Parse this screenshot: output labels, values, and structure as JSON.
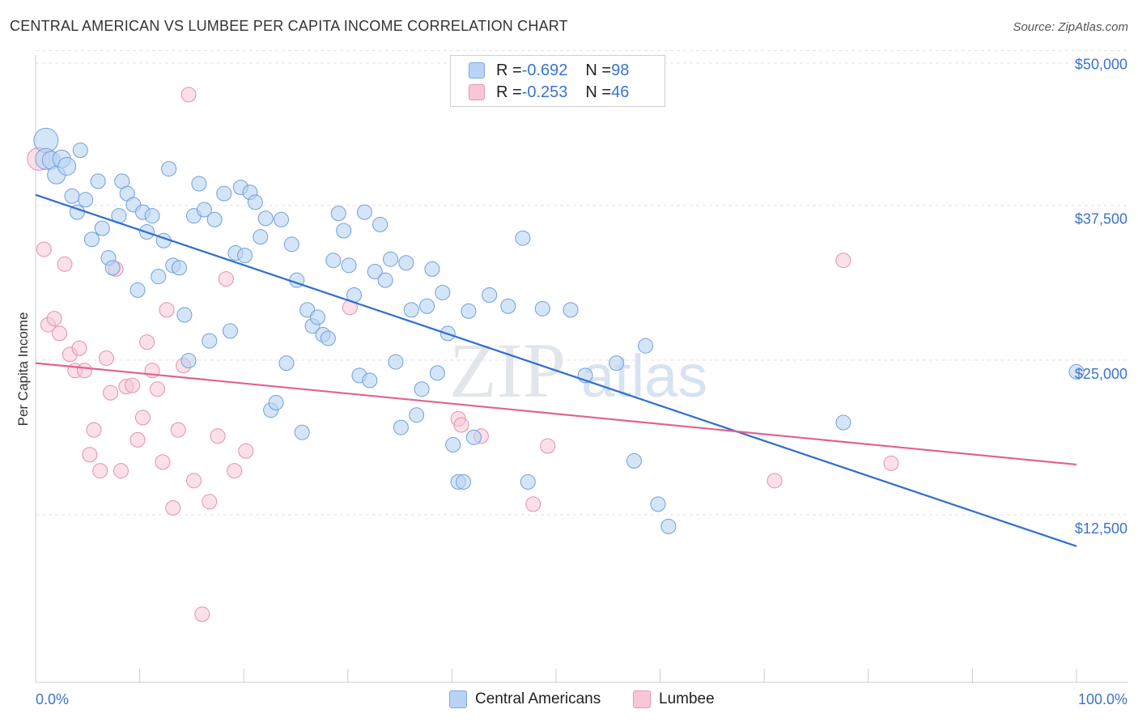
{
  "header": {
    "title": "CENTRAL AMERICAN VS LUMBEE PER CAPITA INCOME CORRELATION CHART",
    "source": "Source: ZipAtlas.com"
  },
  "watermark": {
    "zip": "ZIP",
    "atlas": "atlas"
  },
  "legend": {
    "rows": [
      {
        "r_label": "R = ",
        "r_value": "-0.692",
        "n_label": "N = ",
        "n_value": "98",
        "color": "#b9d3f4"
      },
      {
        "r_label": "R = ",
        "r_value": "-0.253",
        "n_label": "N = ",
        "n_value": "46",
        "color": "#f7c7d6"
      }
    ]
  },
  "bottom_legend": {
    "series1": "Central Americans",
    "series2": "Lumbee"
  },
  "chart_data": {
    "type": "scatter",
    "title": "CENTRAL AMERICAN VS LUMBEE PER CAPITA INCOME CORRELATION CHART",
    "xlabel": "",
    "ylabel": "Per Capita Income",
    "xlim": [
      0,
      100
    ],
    "ylim": [
      0,
      51000
    ],
    "x_tick_labels": [
      "0.0%",
      "100.0%"
    ],
    "y_ticks": [
      12500,
      25000,
      37500,
      50000
    ],
    "y_tick_labels": [
      "$12,500",
      "$25,000",
      "$37,500",
      "$50,000"
    ],
    "grid": true,
    "legend_position": "top-center",
    "colors": {
      "blue_fill": "#b9d3f4",
      "blue_line": "#2f6fd1",
      "pink_fill": "#f7c7d6",
      "pink_line": "#e0628f",
      "axis_text": "#3a74c9"
    },
    "series": [
      {
        "name": "Central Americans",
        "r": -0.692,
        "n": 98,
        "trend": [
          [
            0,
            39400
          ],
          [
            100,
            11000
          ]
        ],
        "points": [
          [
            1.0,
            43800
          ],
          [
            1.0,
            42300
          ],
          [
            1.5,
            42200
          ],
          [
            2.0,
            41000
          ],
          [
            2.5,
            42300
          ],
          [
            3.0,
            41700
          ],
          [
            3.5,
            39300
          ],
          [
            4.0,
            38000
          ],
          [
            4.3,
            43000
          ],
          [
            4.8,
            39000
          ],
          [
            5.4,
            35800
          ],
          [
            6.0,
            40500
          ],
          [
            6.4,
            36700
          ],
          [
            7.0,
            34300
          ],
          [
            7.4,
            33500
          ],
          [
            8.0,
            37700
          ],
          [
            8.3,
            40500
          ],
          [
            8.8,
            39500
          ],
          [
            9.4,
            38600
          ],
          [
            9.8,
            31700
          ],
          [
            10.3,
            38000
          ],
          [
            10.7,
            36400
          ],
          [
            11.2,
            37700
          ],
          [
            11.8,
            32800
          ],
          [
            12.3,
            35700
          ],
          [
            12.8,
            41500
          ],
          [
            13.2,
            33700
          ],
          [
            13.8,
            33500
          ],
          [
            14.3,
            29700
          ],
          [
            14.7,
            26000
          ],
          [
            15.2,
            37700
          ],
          [
            15.7,
            40300
          ],
          [
            16.2,
            38200
          ],
          [
            16.7,
            27600
          ],
          [
            17.2,
            37400
          ],
          [
            18.1,
            39500
          ],
          [
            18.7,
            28400
          ],
          [
            19.2,
            34700
          ],
          [
            19.7,
            40000
          ],
          [
            20.1,
            34500
          ],
          [
            20.6,
            39600
          ],
          [
            21.1,
            38800
          ],
          [
            21.6,
            36000
          ],
          [
            22.1,
            37500
          ],
          [
            22.6,
            22000
          ],
          [
            23.1,
            22600
          ],
          [
            23.6,
            37400
          ],
          [
            24.1,
            25800
          ],
          [
            24.6,
            35400
          ],
          [
            25.1,
            32500
          ],
          [
            25.6,
            20200
          ],
          [
            26.1,
            30100
          ],
          [
            26.6,
            28800
          ],
          [
            27.1,
            29500
          ],
          [
            27.6,
            28100
          ],
          [
            28.1,
            27800
          ],
          [
            28.6,
            34100
          ],
          [
            29.1,
            37900
          ],
          [
            29.6,
            36500
          ],
          [
            30.1,
            33700
          ],
          [
            30.6,
            31300
          ],
          [
            31.1,
            24800
          ],
          [
            31.6,
            38000
          ],
          [
            32.1,
            24400
          ],
          [
            32.6,
            33200
          ],
          [
            33.1,
            37000
          ],
          [
            33.6,
            32500
          ],
          [
            34.1,
            34200
          ],
          [
            34.6,
            25900
          ],
          [
            35.1,
            20600
          ],
          [
            35.6,
            33900
          ],
          [
            36.1,
            30100
          ],
          [
            36.6,
            21600
          ],
          [
            37.1,
            23700
          ],
          [
            37.6,
            30400
          ],
          [
            38.1,
            33400
          ],
          [
            38.6,
            25000
          ],
          [
            39.1,
            31500
          ],
          [
            39.6,
            28200
          ],
          [
            40.1,
            19200
          ],
          [
            40.6,
            16200
          ],
          [
            41.1,
            16200
          ],
          [
            41.6,
            30000
          ],
          [
            42.1,
            19800
          ],
          [
            43.6,
            31300
          ],
          [
            45.4,
            30400
          ],
          [
            46.8,
            35900
          ],
          [
            47.3,
            16200
          ],
          [
            48.7,
            30200
          ],
          [
            51.4,
            30100
          ],
          [
            52.8,
            24800
          ],
          [
            55.8,
            25800
          ],
          [
            57.5,
            17900
          ],
          [
            58.6,
            27200
          ],
          [
            59.8,
            14400
          ],
          [
            60.8,
            12600
          ],
          [
            77.6,
            21000
          ],
          [
            100.0,
            25100
          ]
        ]
      },
      {
        "name": "Lumbee",
        "r": -0.253,
        "n": 46,
        "trend": [
          [
            0,
            25800
          ],
          [
            100,
            17600
          ]
        ],
        "points": [
          [
            0.3,
            42300
          ],
          [
            0.8,
            35000
          ],
          [
            1.2,
            28900
          ],
          [
            1.8,
            29400
          ],
          [
            2.3,
            28200
          ],
          [
            2.8,
            33800
          ],
          [
            3.3,
            26500
          ],
          [
            3.8,
            25200
          ],
          [
            4.2,
            27000
          ],
          [
            4.7,
            25200
          ],
          [
            5.2,
            18400
          ],
          [
            5.6,
            20400
          ],
          [
            6.2,
            17100
          ],
          [
            6.8,
            26200
          ],
          [
            7.2,
            23400
          ],
          [
            7.7,
            33400
          ],
          [
            8.2,
            17100
          ],
          [
            8.7,
            23900
          ],
          [
            9.3,
            24000
          ],
          [
            9.8,
            19600
          ],
          [
            10.3,
            21400
          ],
          [
            10.7,
            27500
          ],
          [
            11.2,
            25200
          ],
          [
            11.7,
            23700
          ],
          [
            12.2,
            17800
          ],
          [
            12.6,
            30100
          ],
          [
            13.2,
            14100
          ],
          [
            13.7,
            20400
          ],
          [
            14.2,
            25600
          ],
          [
            14.7,
            47500
          ],
          [
            15.2,
            16300
          ],
          [
            16.0,
            5500
          ],
          [
            16.7,
            14600
          ],
          [
            17.5,
            19900
          ],
          [
            18.3,
            32600
          ],
          [
            19.1,
            17100
          ],
          [
            20.2,
            18700
          ],
          [
            30.2,
            30300
          ],
          [
            40.6,
            21300
          ],
          [
            40.9,
            20800
          ],
          [
            42.8,
            19900
          ],
          [
            47.8,
            14400
          ],
          [
            49.2,
            19100
          ],
          [
            71.0,
            16300
          ],
          [
            77.6,
            34100
          ],
          [
            82.2,
            17700
          ]
        ]
      }
    ]
  }
}
